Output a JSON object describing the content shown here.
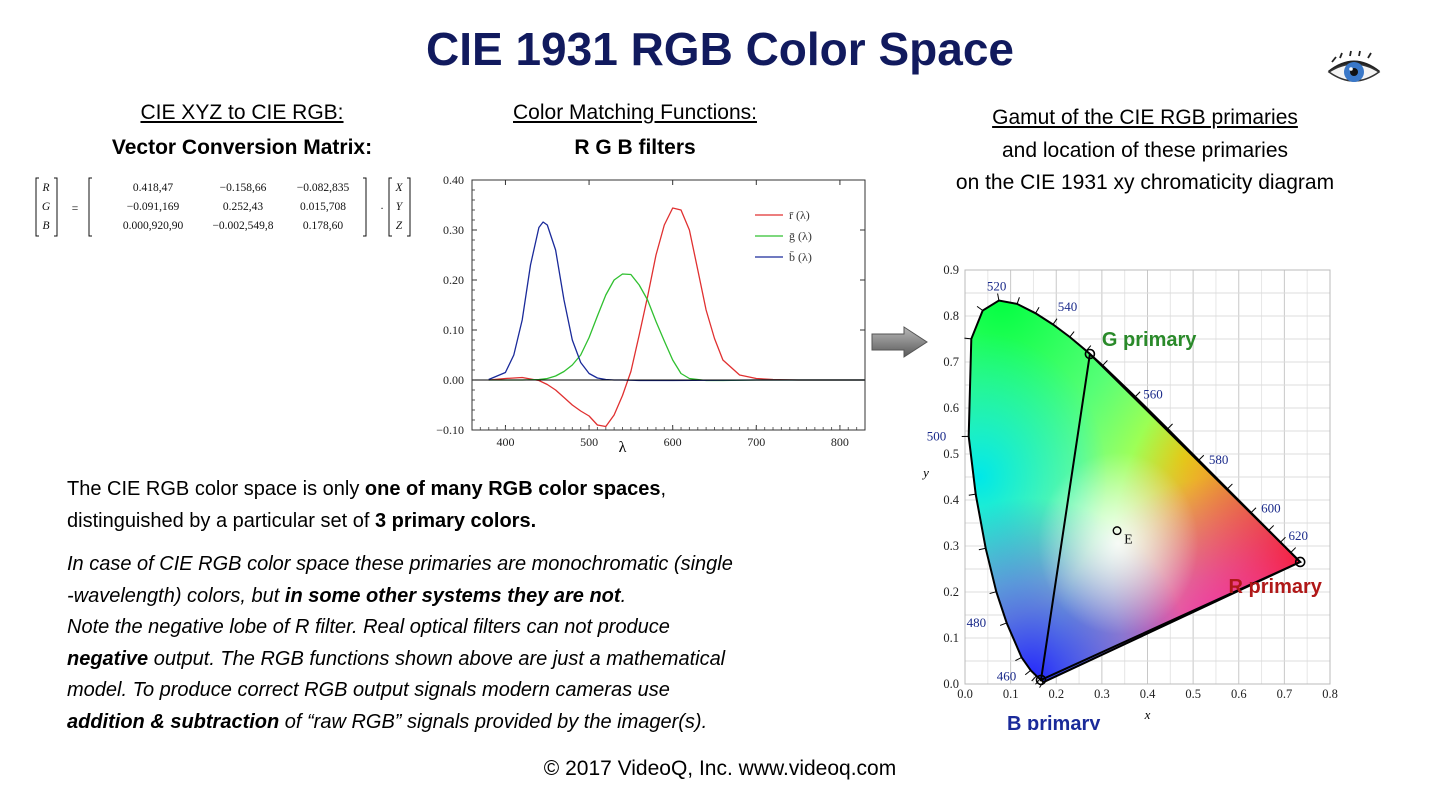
{
  "title": "CIE 1931 RGB Color Space",
  "matrix_section": {
    "heading": "CIE XYZ to CIE RGB:",
    "subheading": "Vector Conversion Matrix:",
    "lhs": [
      "R",
      "G",
      "B"
    ],
    "rows": [
      [
        "0.418,47",
        "−0.158,66",
        "−0.082,835"
      ],
      [
        "−0.091,169",
        "0.252,43",
        "0.015,708"
      ],
      [
        "0.000,920,90",
        "−0.002,549,8",
        "0.178,60"
      ]
    ],
    "rhs": [
      "X",
      "Y",
      "Z"
    ]
  },
  "cmf_section": {
    "heading": "Color Matching Functions:",
    "subheading": "R G B filters"
  },
  "gamut_section": {
    "heading_line1": "Gamut of the CIE RGB primaries",
    "heading_line2": "and location of these primaries",
    "heading_line3": "on the CIE 1931 xy chromaticity diagram"
  },
  "chart_data": [
    {
      "type": "line",
      "xlabel": "λ",
      "ylabel": "",
      "xlim": [
        360,
        830
      ],
      "ylim": [
        -0.1,
        0.4
      ],
      "x_ticks": [
        "400",
        "500",
        "600",
        "700",
        "800"
      ],
      "y_ticks": [
        "−0.10",
        "0.00",
        "0.10",
        "0.20",
        "0.30",
        "0.40"
      ],
      "legend_position": "top-right",
      "series": [
        {
          "name": "r̄ (λ)",
          "color": "#e03030",
          "x": [
            380,
            400,
            420,
            440,
            450,
            460,
            470,
            480,
            490,
            500,
            510,
            520,
            530,
            540,
            550,
            560,
            570,
            580,
            590,
            600,
            610,
            620,
            630,
            640,
            650,
            660,
            680,
            700,
            720,
            750,
            780,
            830
          ],
          "y": [
            0.0,
            0.003,
            0.005,
            -0.001,
            -0.009,
            -0.02,
            -0.035,
            -0.05,
            -0.062,
            -0.072,
            -0.09,
            -0.093,
            -0.07,
            -0.031,
            0.017,
            0.09,
            0.167,
            0.25,
            0.31,
            0.344,
            0.34,
            0.3,
            0.22,
            0.14,
            0.083,
            0.04,
            0.01,
            0.003,
            0.001,
            0.0,
            0.0,
            0.0
          ]
        },
        {
          "name": "ḡ (λ)",
          "color": "#30c030",
          "x": [
            380,
            400,
            420,
            440,
            450,
            460,
            470,
            480,
            490,
            500,
            510,
            520,
            530,
            540,
            550,
            560,
            570,
            580,
            590,
            600,
            610,
            620,
            640,
            660,
            700,
            830
          ],
          "y": [
            0.0,
            0.0,
            0.0,
            0.001,
            0.003,
            0.008,
            0.017,
            0.03,
            0.05,
            0.085,
            0.128,
            0.17,
            0.2,
            0.212,
            0.211,
            0.19,
            0.16,
            0.117,
            0.078,
            0.04,
            0.013,
            0.003,
            -0.001,
            -0.001,
            0.0,
            0.0
          ]
        },
        {
          "name": "b̄ (λ)",
          "color": "#1a2a9a",
          "x": [
            380,
            400,
            410,
            420,
            430,
            440,
            445,
            450,
            460,
            470,
            480,
            490,
            500,
            510,
            520,
            530,
            540,
            560,
            600,
            700,
            830
          ],
          "y": [
            0.001,
            0.015,
            0.05,
            0.12,
            0.23,
            0.305,
            0.316,
            0.31,
            0.26,
            0.16,
            0.08,
            0.035,
            0.013,
            0.004,
            0.001,
            0.0,
            0.0,
            -0.001,
            -0.001,
            0.0,
            0.0
          ]
        }
      ]
    },
    {
      "type": "scatter",
      "xlabel": "x",
      "ylabel": "y",
      "xlim": [
        0.0,
        0.8
      ],
      "ylim": [
        0.0,
        0.9
      ],
      "x_ticks": [
        "0.0",
        "0.1",
        "0.2",
        "0.3",
        "0.4",
        "0.5",
        "0.6",
        "0.7",
        "0.8"
      ],
      "y_ticks": [
        "0.0",
        "0.1",
        "0.2",
        "0.3",
        "0.4",
        "0.5",
        "0.6",
        "0.7",
        "0.8",
        "0.9"
      ],
      "grid": true,
      "locus": [
        [
          0.1741,
          0.005
        ],
        [
          0.1714,
          0.0051
        ],
        [
          0.1644,
          0.0109
        ],
        [
          0.1566,
          0.0177
        ],
        [
          0.144,
          0.0297
        ],
        [
          0.1241,
          0.0578
        ],
        [
          0.0913,
          0.1327
        ],
        [
          0.0687,
          0.2007
        ],
        [
          0.0454,
          0.295
        ],
        [
          0.0235,
          0.4127
        ],
        [
          0.0082,
          0.5384
        ],
        [
          0.0139,
          0.7502
        ],
        [
          0.0389,
          0.812
        ],
        [
          0.0743,
          0.8338
        ],
        [
          0.1142,
          0.8262
        ],
        [
          0.1547,
          0.8059
        ],
        [
          0.1929,
          0.7816
        ],
        [
          0.2296,
          0.7543
        ],
        [
          0.2658,
          0.7243
        ],
        [
          0.3016,
          0.6923
        ],
        [
          0.3731,
          0.6245
        ],
        [
          0.4441,
          0.5547
        ],
        [
          0.5125,
          0.4866
        ],
        [
          0.5752,
          0.4242
        ],
        [
          0.627,
          0.3725
        ],
        [
          0.6658,
          0.334
        ],
        [
          0.6915,
          0.3083
        ],
        [
          0.714,
          0.2859
        ],
        [
          0.7347,
          0.2653
        ]
      ],
      "wavelength_labels": [
        {
          "text": "460",
          "x": 0.144,
          "y": 0.0297
        },
        {
          "text": "480",
          "x": 0.0913,
          "y": 0.1327
        },
        {
          "text": "500",
          "x": 0.0082,
          "y": 0.5384
        },
        {
          "text": "520",
          "x": 0.0743,
          "y": 0.8338
        },
        {
          "text": "540",
          "x": 0.2296,
          "y": 0.7543
        },
        {
          "text": "560",
          "x": 0.3731,
          "y": 0.6245
        },
        {
          "text": "580",
          "x": 0.5125,
          "y": 0.4866
        },
        {
          "text": "600",
          "x": 0.627,
          "y": 0.3725
        },
        {
          "text": "620",
          "x": 0.6915,
          "y": 0.3083
        }
      ],
      "primaries": [
        {
          "name": "R primary",
          "x": 0.7347,
          "y": 0.2653,
          "color": "#b01818"
        },
        {
          "name": "G primary",
          "x": 0.2738,
          "y": 0.7174,
          "color": "#2a8a2a"
        },
        {
          "name": "B primary",
          "x": 0.1666,
          "y": 0.0089,
          "color": "#1a2a9a"
        }
      ],
      "white_point": {
        "name": "E",
        "x": 0.3333,
        "y": 0.3333
      }
    }
  ],
  "body": {
    "p1_a": "The CIE RGB color space is only ",
    "p1_b": "one of many RGB color spaces",
    "p1_c": ",",
    "p1_d": "distinguished by a particular set of ",
    "p1_e": "3 primary colors.",
    "p2_a": "In case of CIE RGB color space these primaries are monochromatic (single",
    "p2_b": "-wavelength) colors, but ",
    "p2_c": "in some other systems they are not",
    "p2_d": ".",
    "p3_a": "Note the negative lobe of R filter. Real optical filters can not produce",
    "p3_b": "negative",
    "p3_c": " output. The RGB functions shown above are just a mathematical",
    "p3_d": "model. To produce correct RGB output signals modern cameras use",
    "p3_e": "addition & subtraction",
    "p3_f": " of “raw RGB” signals provided by the imager(s)."
  },
  "footer": "© 2017 VideoQ, Inc. www.videoq.com",
  "icons": {
    "logo": "eye-icon",
    "arrow": "right-arrow-icon"
  }
}
